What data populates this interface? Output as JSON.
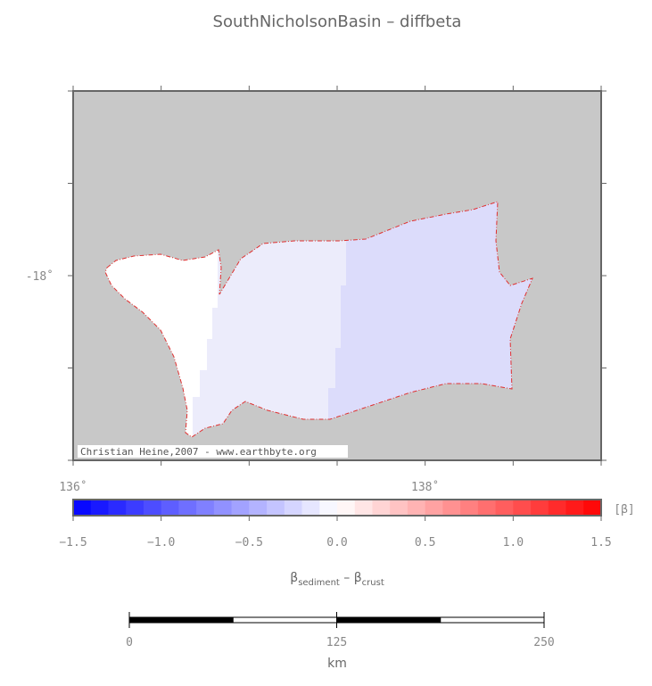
{
  "title": "SouthNicholsonBasin – diffbeta",
  "map": {
    "lonlim": [
      136,
      139
    ],
    "latlim": [
      -19,
      -17
    ],
    "xticks": [
      {
        "value": 136,
        "label": "136˚"
      },
      {
        "value": 138,
        "label": "138˚"
      }
    ],
    "yticks": [
      {
        "value": -18,
        "label": "-18˚"
      }
    ],
    "credit": "Christian Heine,2007 - www.earthbyte.org"
  },
  "colorbar": {
    "range": [
      -1.5,
      1.5
    ],
    "ticks": [
      {
        "value": -1.5,
        "label": "−1.5"
      },
      {
        "value": -1,
        "label": "−1.0"
      },
      {
        "value": -0.5,
        "label": "−0.5"
      },
      {
        "value": 0,
        "label": "0.0"
      },
      {
        "value": 0.5,
        "label": "0.5"
      },
      {
        "value": 1,
        "label": "1.0"
      },
      {
        "value": 1.5,
        "label": "1.5"
      }
    ],
    "unit": "[β]",
    "label": {
      "a": "β",
      "a_sub": "sediment",
      "b": " – β",
      "b_sub": "crust"
    }
  },
  "scalebar": {
    "range": [
      0,
      250
    ],
    "ticks": [
      0,
      125,
      250
    ],
    "unit": "km"
  }
}
